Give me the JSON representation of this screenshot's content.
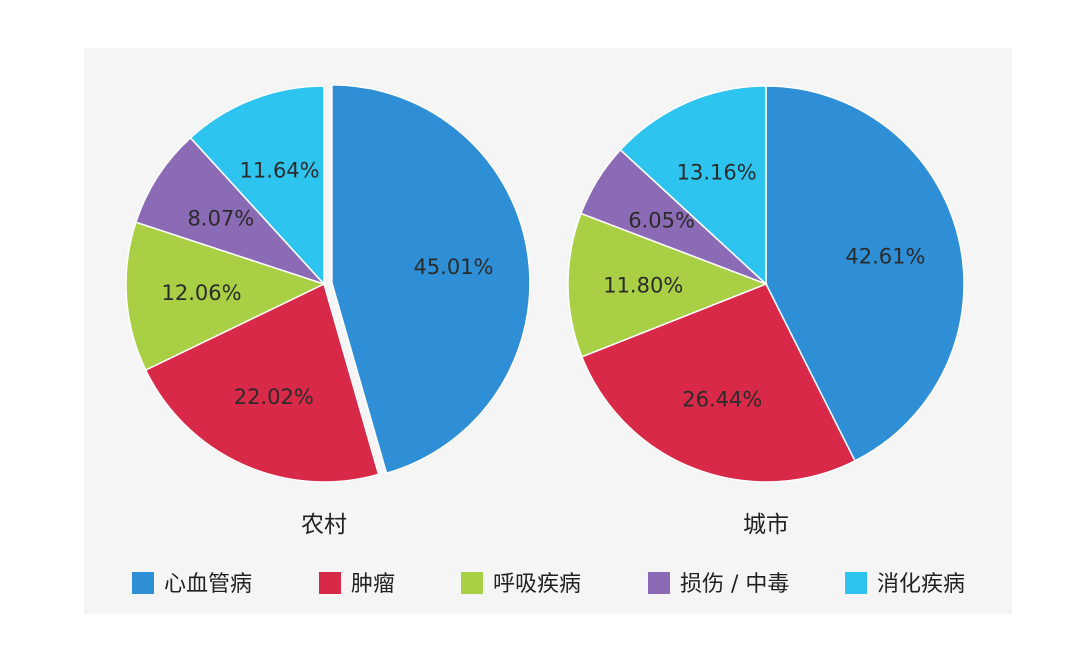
{
  "chart_data": [
    {
      "type": "pie",
      "title": "农村",
      "slices": [
        {
          "label": "心血管病",
          "value": 45.01,
          "display": "45.01%",
          "color": "#2e8fd6",
          "exploded": true
        },
        {
          "label": "肿瘤",
          "value": 22.02,
          "display": "22.02%",
          "color": "#d82a48"
        },
        {
          "label": "呼吸疾病",
          "value": 12.06,
          "display": "12.06%",
          "color": "#a9cf45"
        },
        {
          "label": "损伤 / 中毒",
          "value": 8.07,
          "display": "8.07%",
          "color": "#8c6bb6"
        },
        {
          "label": "消化疾病",
          "value": 11.64,
          "display": "11.64%",
          "color": "#2dc4ef"
        }
      ]
    },
    {
      "type": "pie",
      "title": "城市",
      "slices": [
        {
          "label": "心血管病",
          "value": 42.61,
          "display": "42.61%",
          "color": "#2e8fd6"
        },
        {
          "label": "肿瘤",
          "value": 26.44,
          "display": "26.44%",
          "color": "#d82a48"
        },
        {
          "label": "呼吸疾病",
          "value": 11.8,
          "display": "11.80%",
          "color": "#a9cf45"
        },
        {
          "label": "损伤 / 中毒",
          "value": 6.05,
          "display": "6.05%",
          "color": "#8c6bb6"
        },
        {
          "label": "消化疾病",
          "value": 13.16,
          "display": "13.16%",
          "color": "#2dc4ef"
        }
      ]
    }
  ],
  "legend": [
    {
      "label": "心血管病",
      "color": "#2e8fd6"
    },
    {
      "label": "肿瘤",
      "color": "#d82a48"
    },
    {
      "label": "呼吸疾病",
      "color": "#a9cf45"
    },
    {
      "label": "损伤 / 中毒",
      "color": "#8c6bb6"
    },
    {
      "label": "消化疾病",
      "color": "#2dc4ef"
    }
  ]
}
